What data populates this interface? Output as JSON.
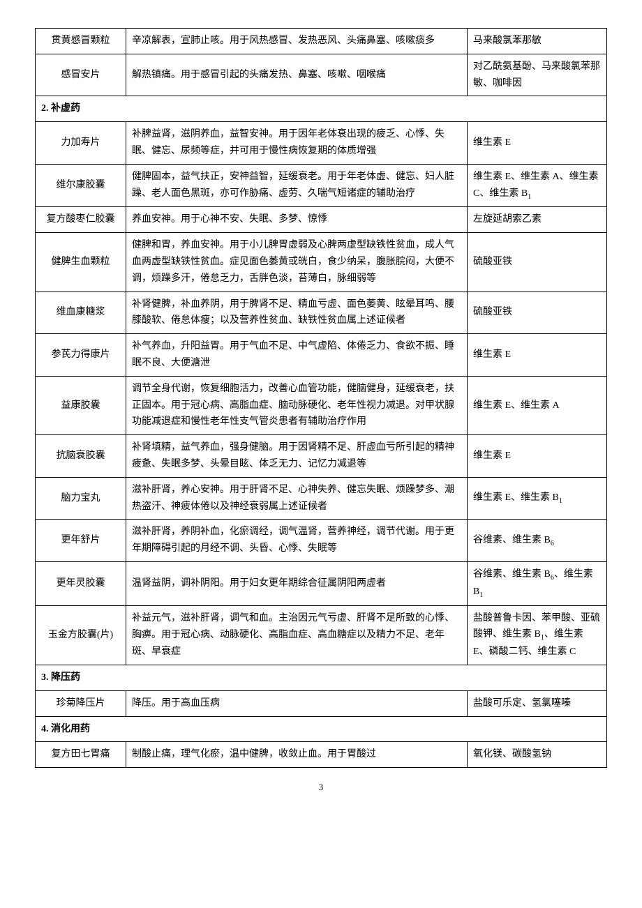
{
  "rows": [
    {
      "type": "data",
      "name": "贯黄感冒颗粒",
      "desc": "辛凉解表，宣肺止咳。用于风热感冒、发热恶风、头痛鼻塞、咳嗽痰多",
      "comp": "马来酸氯苯那敏"
    },
    {
      "type": "data",
      "name": "感冒安片",
      "desc": "解热镇痛。用于感冒引起的头痛发热、鼻塞、咳嗽、咽喉痛",
      "comp": "对乙酰氨基酚、马来酸氯苯那敏、咖啡因"
    },
    {
      "type": "section",
      "label": "2. 补虚药"
    },
    {
      "type": "data",
      "name": "力加寿片",
      "desc": "补脾益肾，滋阴养血，益智安神。用于因年老体衰出现的疲乏、心悸、失眠、健忘、尿频等症，并可用于慢性病恢复期的体质增强",
      "comp": "维生素 E"
    },
    {
      "type": "data",
      "name": "维尔康胶囊",
      "desc": "健脾固本，益气扶正，安神益智，延缓衰老。用于年老体虚、健忘、妇人脏躁、老人面色黑斑，亦可作胁痛、虚劳、久喘气短诸症的辅助治疗",
      "comp": "维生素 E、维生素 A、维生素 C、维生素 B₁"
    },
    {
      "type": "data",
      "name": "复方酸枣仁胶囊",
      "desc": "养血安神。用于心神不安、失眠、多梦、惊悸",
      "comp": "左旋延胡索乙素"
    },
    {
      "type": "data",
      "name": "健脾生血颗粒",
      "desc": "健脾和胃，养血安神。用于小儿脾胃虚弱及心脾两虚型缺铁性贫血，成人气血两虚型缺铁性贫血。症见面色萎黄或㿠白，食少纳呆，腹胀脘闷，大便不调，烦躁多汗，倦怠乏力，舌胖色淡，苔薄白，脉细弱等",
      "comp": "硫酸亚铁"
    },
    {
      "type": "data",
      "name": "维血康糖浆",
      "desc": "补肾健脾，补血养阴，用于脾肾不足、精血亏虚、面色萎黄、眩晕耳鸣、腰膝酸软、倦怠体瘦；以及营养性贫血、缺铁性贫血属上述证候者",
      "comp": "硫酸亚铁"
    },
    {
      "type": "data",
      "name": "参芪力得康片",
      "desc": "补气养血，升阳益胃。用于气血不足、中气虚陷、体倦乏力、食欲不振、睡眠不良、大便溏泄",
      "comp": "维生素 E"
    },
    {
      "type": "data",
      "name": "益康胶囊",
      "desc": "调节全身代谢，恢复细胞活力，改善心血管功能，健脑健身，延缓衰老，扶正固本。用于冠心病、高脂血症、脑动脉硬化、老年性视力减退。对甲状腺功能减退症和慢性老年性支气管炎患者有辅助治疗作用",
      "comp": "维生素 E、维生素 A"
    },
    {
      "type": "data",
      "name": "抗脑衰胶囊",
      "desc": "补肾填精，益气养血，强身健脑。用于因肾精不足、肝虚血亏所引起的精神疲惫、失眠多梦、头晕目眩、体乏无力、记忆力减退等",
      "comp": "维生素 E"
    },
    {
      "type": "data",
      "name": "脑力宝丸",
      "desc": "滋补肝肾，养心安神。用于肝肾不足、心神失养、健忘失眠、烦躁梦多、潮热盗汗、神疲体倦以及神经衰弱属上述证候者",
      "comp": "维生素 E、维生素 B₁"
    },
    {
      "type": "data",
      "name": "更年舒片",
      "desc": "滋补肝肾，养阴补血，化瘀调经，调气温肾，营养神经，调节代谢。用于更年期障碍引起的月经不调、头昏、心悸、失眠等",
      "comp": "谷维素、维生素 B₆"
    },
    {
      "type": "data",
      "name": "更年灵胶囊",
      "desc": "温肾益阴，调补阴阳。用于妇女更年期综合征属阴阳两虚者",
      "comp": "谷维素、维生素 B₆、维生素 B₁"
    },
    {
      "type": "data",
      "name": "玉金方胶囊(片)",
      "desc": "补益元气，滋补肝肾，调气和血。主治因元气亏虚、肝肾不足所致的心悸、胸痹。用于冠心病、动脉硬化、高脂血症、高血糖症以及精力不足、老年斑、早衰症",
      "comp": "盐酸普鲁卡因、苯甲酸、亚硫酸钾、维生素 B₁、维生素 E、磷酸二钙、维生素 C"
    },
    {
      "type": "section",
      "label": "3. 降压药"
    },
    {
      "type": "data",
      "name": "珍菊降压片",
      "desc": "降压。用于高血压病",
      "comp": "盐酸可乐定、氢氯噻嗪"
    },
    {
      "type": "section",
      "label": "4. 消化用药"
    },
    {
      "type": "data",
      "name": "复方田七胃痛",
      "desc": "制酸止痛，理气化瘀，温中健脾，收敛止血。用于胃酸过",
      "comp": "氧化镁、碳酸氢钠"
    }
  ],
  "page_number": "3",
  "style": {
    "font_family": "SimSun",
    "font_size_pt": 14,
    "line_height": 1.7,
    "border_color": "#000000",
    "background_color": "#ffffff",
    "text_color": "#000000",
    "col_widths": {
      "name": 130,
      "comp": 200
    }
  }
}
